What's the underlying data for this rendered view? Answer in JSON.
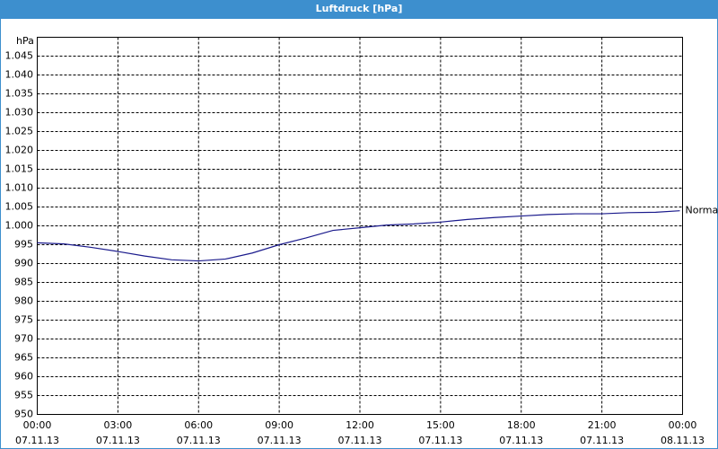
{
  "chart_data": {
    "type": "line",
    "title": "Luftdruck [hPa]",
    "y_label": "hPa",
    "x": [
      0,
      1,
      2,
      3,
      4,
      5,
      6,
      7,
      8,
      9,
      10,
      11,
      12,
      13,
      14,
      15,
      16,
      17,
      18,
      19,
      20,
      21,
      22,
      23,
      23.9
    ],
    "series": [
      {
        "name": "Normal",
        "color": "#1a1a8c",
        "values": [
          995.5,
          995.2,
          994.3,
          993.2,
          992,
          991,
          990.7,
          991.2,
          992.8,
          995,
          996.8,
          998.8,
          999.5,
          1000.2,
          1000.5,
          1001,
          1001.7,
          1002.2,
          1002.6,
          1003,
          1003.2,
          1003.2,
          1003.5,
          1003.6,
          1004
        ]
      }
    ],
    "xlim": [
      0,
      24
    ],
    "xticks": [
      {
        "value": 0,
        "label": "00:00 07.11.13"
      },
      {
        "value": 3,
        "label": "03:00 07.11.13"
      },
      {
        "value": 6,
        "label": "06:00 07.11.13"
      },
      {
        "value": 9,
        "label": "09:00 07.11.13"
      },
      {
        "value": 12,
        "label": "12:00 07.11.13"
      },
      {
        "value": 15,
        "label": "15:00 07.11.13"
      },
      {
        "value": 18,
        "label": "18:00 07.11.13"
      },
      {
        "value": 21,
        "label": "21:00 07.11.13"
      },
      {
        "value": 24,
        "label": "00:00 08.11.13"
      }
    ],
    "ylim": [
      950,
      1050
    ],
    "yticks": [
      950,
      955,
      960,
      965,
      970,
      975,
      980,
      985,
      990,
      995,
      {
        "value": 1000,
        "label": "1.000"
      },
      {
        "value": 1005,
        "label": "1.005"
      },
      {
        "value": 1010,
        "label": "1.010"
      },
      {
        "value": 1015,
        "label": "1.015"
      },
      {
        "value": 1020,
        "label": "1.020"
      },
      {
        "value": 1025,
        "label": "1.025"
      },
      {
        "value": 1030,
        "label": "1.030"
      },
      {
        "value": 1035,
        "label": "1.035"
      },
      {
        "value": 1040,
        "label": "1.040"
      },
      {
        "value": 1045,
        "label": "1.045"
      }
    ],
    "grid": true
  }
}
